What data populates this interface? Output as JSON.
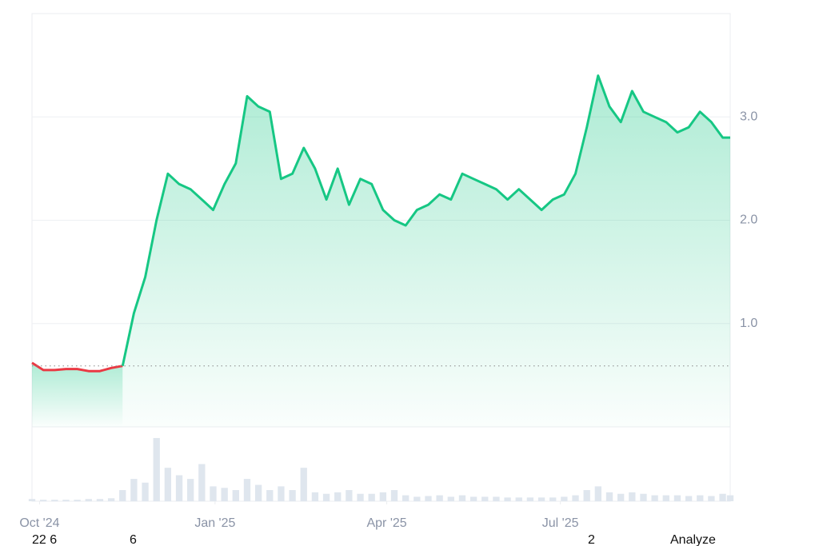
{
  "chart_data": {
    "type": "line",
    "x": [
      0,
      6,
      12,
      18,
      24,
      30,
      36,
      42,
      48,
      54,
      60,
      66,
      72,
      78,
      84,
      90,
      96,
      102,
      108,
      114,
      120,
      126,
      132,
      138,
      144,
      150,
      156,
      162,
      168,
      174,
      180,
      186,
      192,
      198,
      204,
      210,
      216,
      222,
      228,
      234,
      240,
      246,
      252,
      258,
      264,
      270,
      276,
      282,
      288,
      294,
      300,
      306,
      312,
      318,
      324,
      330,
      336,
      342,
      348,
      354,
      360,
      366,
      370
    ],
    "series": [
      {
        "color": "#ea3943",
        "values": [
          0.62,
          0.55,
          0.55,
          0.56,
          0.56,
          0.54,
          0.54,
          0.57,
          0.59,
          null,
          null,
          null,
          null,
          null,
          null,
          null,
          null,
          null,
          null,
          null,
          null,
          null,
          null,
          null,
          null,
          null,
          null,
          null,
          null,
          null,
          null,
          null,
          null,
          null,
          null,
          null,
          null,
          null,
          null,
          null,
          null,
          null,
          null,
          null,
          null,
          null,
          null,
          null,
          null,
          null,
          null,
          null,
          null,
          null,
          null,
          null,
          null,
          null,
          null,
          null,
          null,
          null,
          null
        ]
      },
      {
        "color": "#16c784",
        "values": [
          null,
          null,
          null,
          null,
          null,
          null,
          null,
          null,
          0.59,
          1.1,
          1.45,
          2.0,
          2.45,
          2.35,
          2.3,
          2.2,
          2.1,
          2.35,
          2.55,
          3.2,
          3.1,
          3.05,
          2.4,
          2.45,
          2.7,
          2.5,
          2.2,
          2.5,
          2.15,
          2.4,
          2.35,
          2.1,
          2.0,
          1.95,
          2.1,
          2.15,
          2.25,
          2.2,
          2.45,
          2.4,
          2.35,
          2.3,
          2.2,
          2.3,
          2.2,
          2.1,
          2.2,
          2.25,
          2.45,
          2.9,
          3.4,
          3.1,
          2.95,
          3.25,
          3.05,
          3.0,
          2.95,
          2.85,
          2.9,
          3.05,
          2.95,
          2.8,
          2.8
        ]
      }
    ],
    "volume": {
      "color": "#dfe6ee",
      "values": [
        3,
        2,
        2,
        2,
        2,
        3,
        3,
        4,
        15,
        30,
        25,
        85,
        45,
        35,
        30,
        50,
        20,
        18,
        15,
        30,
        22,
        15,
        20,
        15,
        45,
        12,
        10,
        12,
        15,
        10,
        10,
        12,
        15,
        8,
        6,
        7,
        8,
        6,
        8,
        6,
        6,
        6,
        5,
        5,
        5,
        5,
        5,
        6,
        8,
        15,
        20,
        12,
        10,
        12,
        10,
        8,
        8,
        8,
        7,
        8,
        7,
        10,
        8
      ],
      "ylim": [
        0,
        100
      ]
    },
    "baseline": 0.59,
    "xlim": [
      0,
      370
    ],
    "xticks": [
      {
        "value": 4,
        "label": "Oct '24"
      },
      {
        "value": 97,
        "label": "Jan '25"
      },
      {
        "value": 188,
        "label": "Apr '25"
      },
      {
        "value": 280,
        "label": "Jul '25"
      }
    ],
    "ylim": [
      0,
      4
    ],
    "yticks": [
      {
        "value": 1,
        "label": "1.0"
      },
      {
        "value": 2,
        "label": "2.0"
      },
      {
        "value": 3,
        "label": "3.0"
      }
    ],
    "grid": true
  },
  "footer": [
    "22 6",
    "6",
    "2",
    "Analyze"
  ]
}
